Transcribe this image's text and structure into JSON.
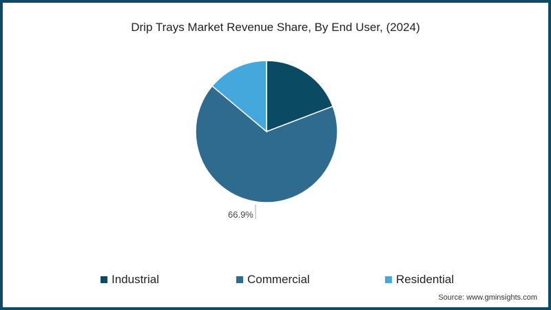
{
  "chart_data": {
    "type": "pie",
    "title": "Drip Trays Market Revenue Share, By End User, (2024)",
    "categories": [
      "Industrial",
      "Commercial",
      "Residential"
    ],
    "values": [
      19.2,
      66.9,
      13.9
    ],
    "colors": [
      "#0b4a63",
      "#2e6b8f",
      "#45a8dc"
    ],
    "data_labels": [
      {
        "category": "Commercial",
        "text": "66.9%"
      }
    ],
    "legend_position": "bottom",
    "start_angle_deg": 0,
    "direction": "clockwise"
  },
  "title": "Drip Trays Market Revenue Share, By End User, (2024)",
  "pie_label": "66.9%",
  "legend": {
    "items": [
      {
        "label": "Industrial",
        "color": "#0b4a63"
      },
      {
        "label": "Commercial",
        "color": "#2e6b8f"
      },
      {
        "label": "Residential",
        "color": "#45a8dc"
      }
    ]
  },
  "source": "Source: www.gminsights.com",
  "colors": {
    "border": "#0d4a66"
  }
}
